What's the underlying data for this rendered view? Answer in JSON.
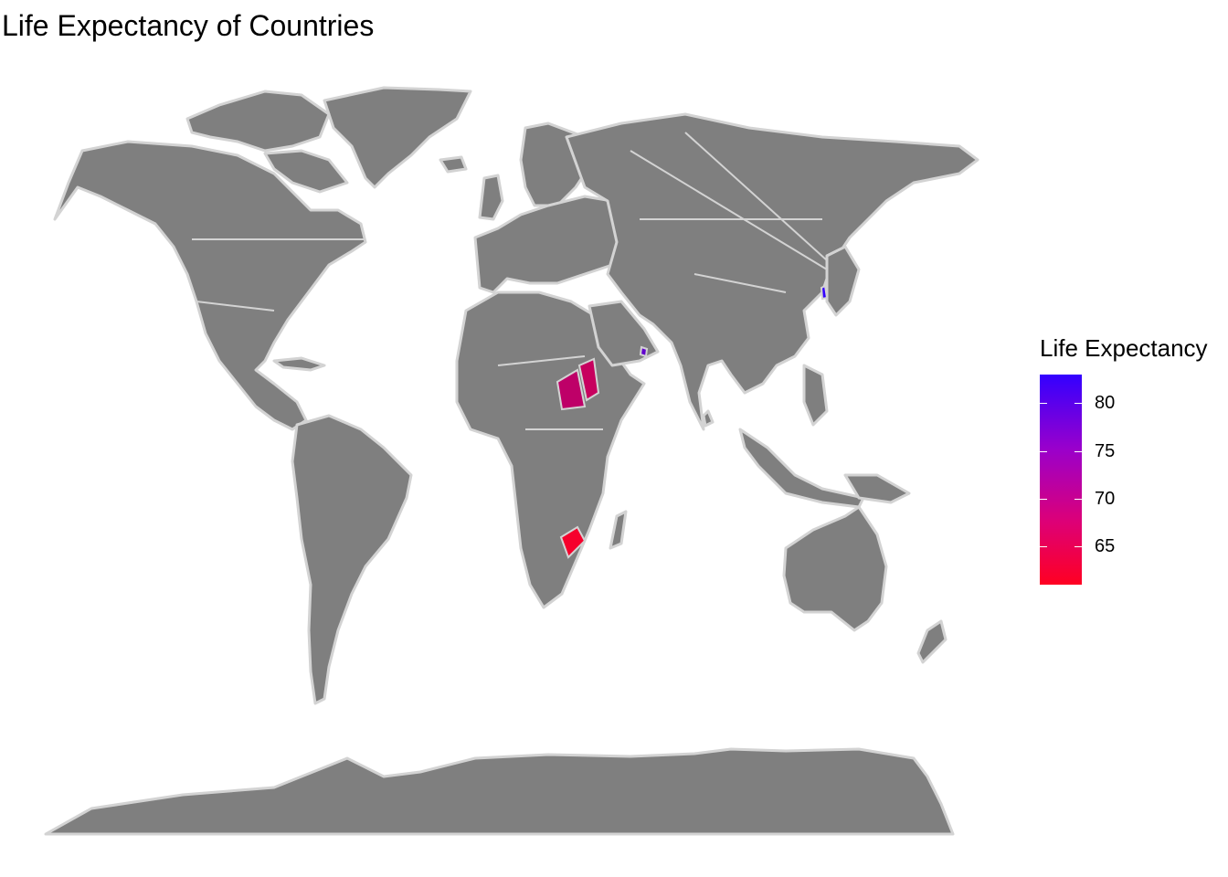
{
  "title": "Life Expectancy of Countries",
  "legend": {
    "title": "Life Expectancy",
    "min": 61,
    "max": 83,
    "ticks": [
      80,
      75,
      70,
      65
    ],
    "colors": {
      "low": "#ff0022",
      "high": "#3300ff"
    }
  },
  "map": {
    "land_color": "#7f7f7f",
    "border_color": "#d3d3d3",
    "projection": "world, equirectangular-like"
  },
  "highlighted_regions": [
    {
      "region": "north-korea-area",
      "life_expectancy": 83
    },
    {
      "region": "oman-area",
      "life_expectancy": 78
    },
    {
      "region": "south-sudan-area",
      "life_expectancy": 68
    },
    {
      "region": "eritrea-area",
      "life_expectancy": 67
    },
    {
      "region": "zimbabwe-area",
      "life_expectancy": 62
    }
  ]
}
